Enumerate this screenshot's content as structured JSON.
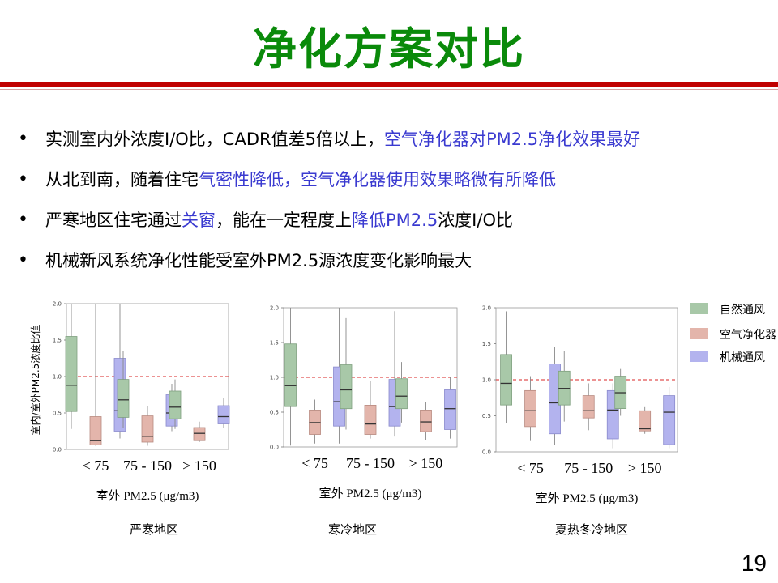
{
  "title": "净化方案对比",
  "page_number": "19",
  "bullets": [
    [
      {
        "t": "实测室内外浓度I/O比，CADR值差5倍以上，",
        "hl": false
      },
      {
        "t": "空气净化器对PM2.5净化效果最好",
        "hl": true
      }
    ],
    [
      {
        "t": "从北到南，随着住宅",
        "hl": false
      },
      {
        "t": "气密性降低，空气净化器使用效果略微有所降低",
        "hl": true
      }
    ],
    [
      {
        "t": "严寒地区住宅通过",
        "hl": false
      },
      {
        "t": "关窗",
        "hl": true
      },
      {
        "t": "，能在一定程度上",
        "hl": false
      },
      {
        "t": "降低PM2.5",
        "hl": true
      },
      {
        "t": "浓度I/O比",
        "hl": false
      }
    ],
    [
      {
        "t": "机械新风系统净化性能受室外PM2.5源浓度变化影响最大",
        "hl": false
      }
    ]
  ],
  "colors": {
    "title": "#0a8a0a",
    "rule": "#c00000",
    "highlight": "#3a3ad0",
    "natural": "#a8c8a8",
    "purifier": "#e3b5ab",
    "mechanical": "#b3b3ee",
    "reference_line": "#e05050"
  },
  "legend": [
    {
      "label": "自然通风",
      "color": "#a8c8a8"
    },
    {
      "label": "空气净化器",
      "color": "#e3b5ab"
    },
    {
      "label": "机械通风",
      "color": "#b3b3ee"
    }
  ],
  "chart_data": [
    {
      "type": "box",
      "region": "严寒地区",
      "xlabel": "室外 PM2.5 (μg/m3)",
      "ylabel": "室内/室外PM2.5浓度比值",
      "ylim": [
        0,
        2.0
      ],
      "yticks": [
        "0.0",
        "0.5",
        "1.0",
        "1.5",
        "2.0"
      ],
      "reference_line": 1.0,
      "categories": [
        "< 75",
        "75 - 150",
        "> 150"
      ],
      "series": [
        {
          "name": "自然通风",
          "boxes": [
            {
              "whislo": 0.28,
              "q1": 0.52,
              "med": 0.88,
              "q3": 1.55,
              "whishi": 2.0
            },
            {
              "whislo": 0.3,
              "q1": 0.44,
              "med": 0.68,
              "q3": 0.96,
              "whishi": 1.35
            },
            {
              "whislo": 0.28,
              "q1": 0.42,
              "med": 0.58,
              "q3": 0.8,
              "whishi": 0.96
            }
          ]
        },
        {
          "name": "空气净化器",
          "boxes": [
            {
              "whislo": 0.05,
              "q1": 0.06,
              "med": 0.12,
              "q3": 0.45,
              "whishi": 2.0
            },
            {
              "whislo": 0.05,
              "q1": 0.1,
              "med": 0.18,
              "q3": 0.46,
              "whishi": 0.6
            },
            {
              "whislo": 0.1,
              "q1": 0.12,
              "med": 0.22,
              "q3": 0.3,
              "whishi": 0.38
            }
          ]
        },
        {
          "name": "机械通风",
          "boxes": [
            {
              "whislo": 0.15,
              "q1": 0.25,
              "med": 0.53,
              "q3": 1.25,
              "whishi": 2.0
            },
            {
              "whislo": 0.25,
              "q1": 0.32,
              "med": 0.5,
              "q3": 0.75,
              "whishi": 0.9
            },
            {
              "whislo": 0.3,
              "q1": 0.35,
              "med": 0.45,
              "q3": 0.6,
              "whishi": 0.7
            }
          ]
        }
      ]
    },
    {
      "type": "box",
      "region": "寒冷地区",
      "xlabel": "室外 PM2.5 (μg/m3)",
      "ylabel": "",
      "ylim": [
        0,
        2.0
      ],
      "yticks": [
        "0.0",
        "0.5",
        "1.0",
        "1.5",
        "2.0"
      ],
      "reference_line": 1.0,
      "categories": [
        "< 75",
        "75 - 150",
        "> 150"
      ],
      "series": [
        {
          "name": "自然通风",
          "boxes": [
            {
              "whislo": 0.02,
              "q1": 0.58,
              "med": 0.88,
              "q3": 1.48,
              "whishi": 2.0
            },
            {
              "whislo": 0.25,
              "q1": 0.55,
              "med": 0.82,
              "q3": 1.18,
              "whishi": 1.85
            },
            {
              "whislo": 0.35,
              "q1": 0.55,
              "med": 0.73,
              "q3": 0.98,
              "whishi": 1.22
            }
          ]
        },
        {
          "name": "空气净化器",
          "boxes": [
            {
              "whislo": 0.05,
              "q1": 0.18,
              "med": 0.35,
              "q3": 0.53,
              "whishi": 0.68
            },
            {
              "whislo": 0.12,
              "q1": 0.18,
              "med": 0.33,
              "q3": 0.6,
              "whishi": 0.95
            },
            {
              "whislo": 0.1,
              "q1": 0.22,
              "med": 0.36,
              "q3": 0.53,
              "whishi": 0.65
            }
          ]
        },
        {
          "name": "机械通风",
          "boxes": [
            {
              "whislo": 0.05,
              "q1": 0.3,
              "med": 0.65,
              "q3": 1.15,
              "whishi": 2.0
            },
            {
              "whislo": 0.15,
              "q1": 0.3,
              "med": 0.58,
              "q3": 0.97,
              "whishi": 1.95
            },
            {
              "whislo": 0.12,
              "q1": 0.25,
              "med": 0.55,
              "q3": 0.82,
              "whishi": 1.0
            }
          ]
        }
      ]
    },
    {
      "type": "box",
      "region": "夏热冬冷地区",
      "xlabel": "室外 PM2.5 (μg/m3)",
      "ylabel": "",
      "ylim": [
        0,
        2.0
      ],
      "yticks": [
        "0.0",
        "0.5",
        "1.0",
        "1.5",
        "2.0"
      ],
      "reference_line": 1.0,
      "categories": [
        "< 75",
        "75 - 150",
        "> 150"
      ],
      "series": [
        {
          "name": "自然通风",
          "boxes": [
            {
              "whislo": 0.4,
              "q1": 0.65,
              "med": 0.95,
              "q3": 1.35,
              "whishi": 1.95
            },
            {
              "whislo": 0.42,
              "q1": 0.65,
              "med": 0.88,
              "q3": 1.12,
              "whishi": 1.4
            },
            {
              "whislo": 0.5,
              "q1": 0.6,
              "med": 0.82,
              "q3": 1.05,
              "whishi": 1.15
            }
          ]
        },
        {
          "name": "空气净化器",
          "boxes": [
            {
              "whislo": 0.15,
              "q1": 0.35,
              "med": 0.57,
              "q3": 0.85,
              "whishi": 1.05
            },
            {
              "whislo": 0.3,
              "q1": 0.47,
              "med": 0.57,
              "q3": 0.78,
              "whishi": 0.95
            },
            {
              "whislo": 0.25,
              "q1": 0.29,
              "med": 0.32,
              "q3": 0.57,
              "whishi": 0.62
            }
          ]
        },
        {
          "name": "机械通风",
          "boxes": [
            {
              "whislo": 0.1,
              "q1": 0.25,
              "med": 0.68,
              "q3": 1.22,
              "whishi": 1.45
            },
            {
              "whislo": 0.05,
              "q1": 0.18,
              "med": 0.58,
              "q3": 0.85,
              "whishi": 0.95
            },
            {
              "whislo": 0.05,
              "q1": 0.1,
              "med": 0.55,
              "q3": 0.78,
              "whishi": 0.9
            }
          ]
        }
      ]
    }
  ]
}
